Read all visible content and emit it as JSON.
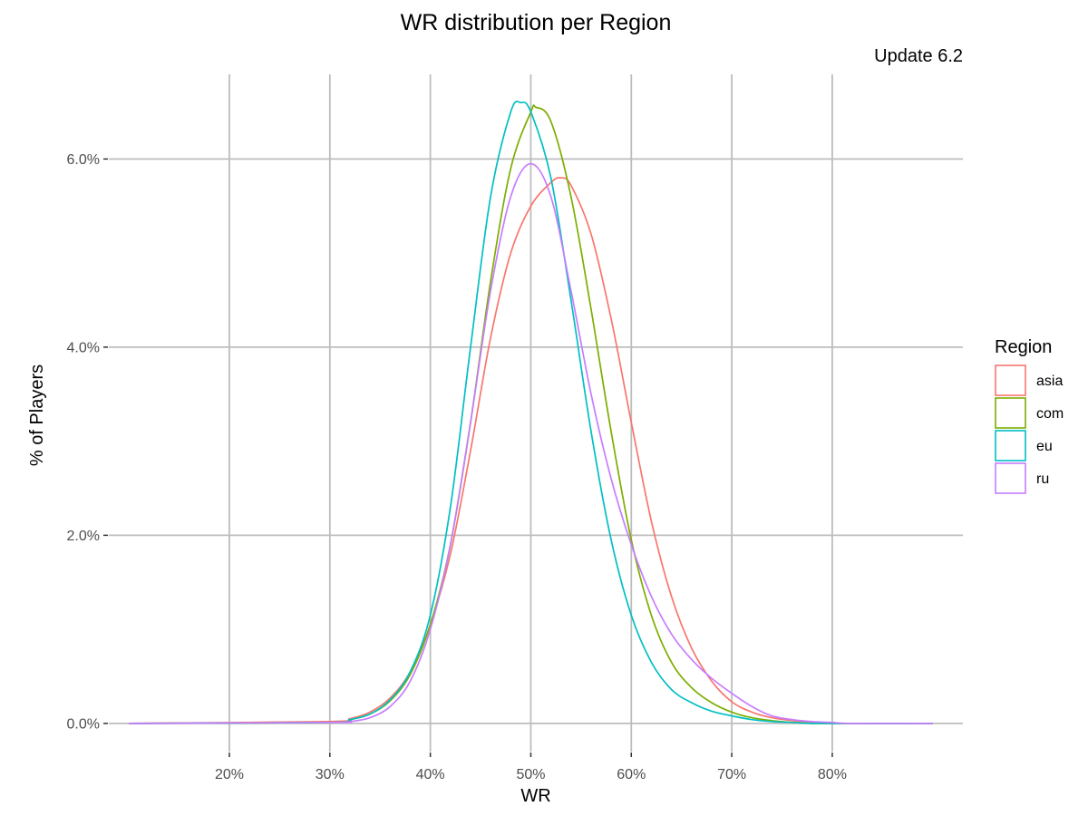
{
  "chart_data": {
    "type": "line",
    "title": "WR distribution per Region",
    "subtitle": "Update 6.2",
    "xlabel": "WR",
    "ylabel": "% of Players",
    "xlim": [
      0.08,
      0.93
    ],
    "ylim": [
      -0.003,
      0.069
    ],
    "x_ticks": [
      0.2,
      0.3,
      0.4,
      0.5,
      0.6,
      0.7,
      0.8
    ],
    "x_tick_labels": [
      "20%",
      "30%",
      "40%",
      "50%",
      "60%",
      "70%",
      "80%"
    ],
    "y_ticks": [
      0.0,
      0.02,
      0.04,
      0.06
    ],
    "y_tick_labels": [
      "0.0%",
      "2.0%",
      "4.0%",
      "6.0%"
    ],
    "grid": true,
    "legend": {
      "title": "Region",
      "position": "right"
    },
    "series": [
      {
        "name": "asia",
        "color": "#F8766D",
        "x": [
          0.3,
          0.32,
          0.34,
          0.36,
          0.38,
          0.4,
          0.42,
          0.44,
          0.46,
          0.48,
          0.5,
          0.52,
          0.53,
          0.54,
          0.56,
          0.58,
          0.6,
          0.62,
          0.64,
          0.66,
          0.68,
          0.7,
          0.72,
          0.74,
          0.76,
          0.78,
          0.8
        ],
        "y": [
          0.0002,
          0.0005,
          0.0012,
          0.0027,
          0.0055,
          0.0105,
          0.018,
          0.029,
          0.041,
          0.05,
          0.055,
          0.0575,
          0.058,
          0.0572,
          0.052,
          0.043,
          0.032,
          0.0215,
          0.0135,
          0.008,
          0.0045,
          0.0023,
          0.0012,
          0.0006,
          0.0003,
          0.0001,
          0.0
        ]
      },
      {
        "name": "com",
        "color": "#7CAE00",
        "x": [
          0.3,
          0.32,
          0.34,
          0.36,
          0.38,
          0.4,
          0.42,
          0.44,
          0.46,
          0.48,
          0.5,
          0.505,
          0.52,
          0.54,
          0.56,
          0.58,
          0.6,
          0.62,
          0.64,
          0.66,
          0.68,
          0.7,
          0.72,
          0.74,
          0.76,
          0.78,
          0.8
        ],
        "y": [
          0.0001,
          0.0004,
          0.001,
          0.0024,
          0.0052,
          0.0105,
          0.019,
          0.032,
          0.047,
          0.059,
          0.065,
          0.0655,
          0.064,
          0.056,
          0.044,
          0.031,
          0.0195,
          0.0115,
          0.0065,
          0.0038,
          0.0022,
          0.0012,
          0.0006,
          0.0003,
          0.0001,
          0.0,
          0.0
        ]
      },
      {
        "name": "eu",
        "color": "#00BFC4",
        "x": [
          0.3,
          0.32,
          0.34,
          0.36,
          0.38,
          0.4,
          0.42,
          0.44,
          0.46,
          0.48,
          0.49,
          0.5,
          0.52,
          0.54,
          0.56,
          0.58,
          0.6,
          0.62,
          0.64,
          0.66,
          0.68,
          0.7,
          0.72,
          0.74,
          0.76,
          0.78,
          0.8
        ],
        "y": [
          0.0001,
          0.0004,
          0.001,
          0.0025,
          0.0055,
          0.0115,
          0.023,
          0.04,
          0.056,
          0.065,
          0.066,
          0.065,
          0.058,
          0.045,
          0.031,
          0.0195,
          0.0115,
          0.0065,
          0.0036,
          0.0022,
          0.0013,
          0.0008,
          0.0004,
          0.0002,
          0.0001,
          0.0,
          0.0
        ]
      },
      {
        "name": "ru",
        "color": "#C77CFF",
        "x": [
          0.3,
          0.32,
          0.34,
          0.36,
          0.38,
          0.4,
          0.42,
          0.44,
          0.46,
          0.48,
          0.5,
          0.52,
          0.54,
          0.56,
          0.58,
          0.6,
          0.62,
          0.64,
          0.66,
          0.68,
          0.7,
          0.72,
          0.74,
          0.76,
          0.78,
          0.8,
          0.82
        ],
        "y": [
          0.0001,
          0.0002,
          0.0006,
          0.0018,
          0.0045,
          0.01,
          0.019,
          0.032,
          0.046,
          0.056,
          0.0595,
          0.056,
          0.046,
          0.035,
          0.026,
          0.019,
          0.0135,
          0.0095,
          0.0068,
          0.0048,
          0.0032,
          0.0018,
          0.0008,
          0.0004,
          0.0002,
          0.0001,
          0.0
        ]
      }
    ]
  }
}
